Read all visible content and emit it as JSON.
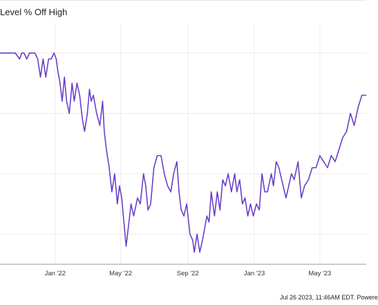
{
  "chart_data": {
    "type": "line",
    "title": "Level % Off High",
    "x_tick_labels": [
      "Jan '22",
      "May '22",
      "Sep '22",
      "Jan '23",
      "May '23"
    ],
    "x_tick_dates": [
      "2022-01-01",
      "2022-05-01",
      "2022-09-01",
      "2023-01-01",
      "2023-05-01"
    ],
    "x_range": [
      "2021-09-22",
      "2023-07-25"
    ],
    "ylim": [
      -35,
      5
    ],
    "grid": true,
    "legend": "none",
    "line_color": "#6a3fc7",
    "series": [
      {
        "x": [
          "2021-09-22",
          "2021-10-01",
          "2021-10-10",
          "2021-10-20",
          "2021-10-28",
          "2021-11-01",
          "2021-11-05",
          "2021-11-10",
          "2021-11-15",
          "2021-11-20",
          "2021-11-25",
          "2021-11-30",
          "2021-12-05",
          "2021-12-10",
          "2021-12-15",
          "2021-12-20",
          "2021-12-25",
          "2021-12-30",
          "2022-01-03",
          "2022-01-06",
          "2022-01-10",
          "2022-01-14",
          "2022-01-18",
          "2022-01-22",
          "2022-01-27",
          "2022-02-01",
          "2022-02-05",
          "2022-02-10",
          "2022-02-15",
          "2022-02-20",
          "2022-02-24",
          "2022-03-01",
          "2022-03-05",
          "2022-03-08",
          "2022-03-12",
          "2022-03-18",
          "2022-03-24",
          "2022-03-29",
          "2022-04-01",
          "2022-04-05",
          "2022-04-10",
          "2022-04-15",
          "2022-04-20",
          "2022-04-25",
          "2022-04-29",
          "2022-05-03",
          "2022-05-07",
          "2022-05-11",
          "2022-05-15",
          "2022-05-20",
          "2022-05-25",
          "2022-06-01",
          "2022-06-06",
          "2022-06-12",
          "2022-06-16",
          "2022-06-20",
          "2022-06-25",
          "2022-07-01",
          "2022-07-07",
          "2022-07-14",
          "2022-07-20",
          "2022-07-26",
          "2022-08-01",
          "2022-08-06",
          "2022-08-12",
          "2022-08-16",
          "2022-08-20",
          "2022-08-25",
          "2022-08-30",
          "2022-09-05",
          "2022-09-10",
          "2022-09-13",
          "2022-09-18",
          "2022-09-23",
          "2022-09-28",
          "2022-10-02",
          "2022-10-06",
          "2022-10-10",
          "2022-10-14",
          "2022-10-20",
          "2022-10-25",
          "2022-10-30",
          "2022-11-04",
          "2022-11-09",
          "2022-11-14",
          "2022-11-20",
          "2022-11-26",
          "2022-11-30",
          "2022-12-05",
          "2022-12-10",
          "2022-12-15",
          "2022-12-20",
          "2022-12-25",
          "2022-12-30",
          "2023-01-05",
          "2023-01-10",
          "2023-01-15",
          "2023-01-20",
          "2023-01-25",
          "2023-02-01",
          "2023-02-05",
          "2023-02-10",
          "2023-02-15",
          "2023-02-20",
          "2023-02-28",
          "2023-03-05",
          "2023-03-10",
          "2023-03-15",
          "2023-03-22",
          "2023-03-28",
          "2023-04-03",
          "2023-04-10",
          "2023-04-17",
          "2023-04-24",
          "2023-05-01",
          "2023-05-08",
          "2023-05-15",
          "2023-05-22",
          "2023-05-29",
          "2023-06-05",
          "2023-06-12",
          "2023-06-19",
          "2023-06-26",
          "2023-07-03",
          "2023-07-10",
          "2023-07-17",
          "2023-07-25"
        ],
        "y": [
          0,
          0,
          0,
          0,
          -1,
          0,
          0,
          -1,
          0,
          0,
          0,
          -1,
          -4,
          -1,
          -4,
          -1,
          -1,
          0,
          -1,
          -3,
          -5,
          -8,
          -4,
          -8,
          -10,
          -5,
          -8,
          -5,
          -7,
          -11,
          -13,
          -10,
          -6,
          -8,
          -7,
          -10,
          -12,
          -8,
          -13,
          -16,
          -19,
          -23,
          -20,
          -25,
          -22,
          -24,
          -28,
          -32,
          -29,
          -25,
          -27,
          -24,
          -25,
          -20,
          -22,
          -26,
          -25,
          -19,
          -17,
          -17,
          -20,
          -22,
          -23,
          -20,
          -18,
          -23,
          -26,
          -27,
          -25,
          -30,
          -31,
          -33,
          -30,
          -33,
          -31,
          -29,
          -27,
          -28,
          -23,
          -27,
          -23,
          -26,
          -21,
          -22,
          -20,
          -23,
          -20,
          -23,
          -21,
          -25,
          -24,
          -27,
          -25,
          -27,
          -25,
          -26,
          -20,
          -23,
          -23,
          -20,
          -22,
          -18,
          -19,
          -21,
          -24,
          -22,
          -20,
          -21,
          -18,
          -24,
          -22,
          -21,
          -19,
          -19,
          -17,
          -18,
          -19,
          -17,
          -18,
          -16,
          -14,
          -13,
          -10,
          -12,
          -9,
          -7,
          -7
        ]
      }
    ]
  },
  "footer": {
    "text": "Jul 26 2023, 11:46AM EDT. Powere"
  }
}
